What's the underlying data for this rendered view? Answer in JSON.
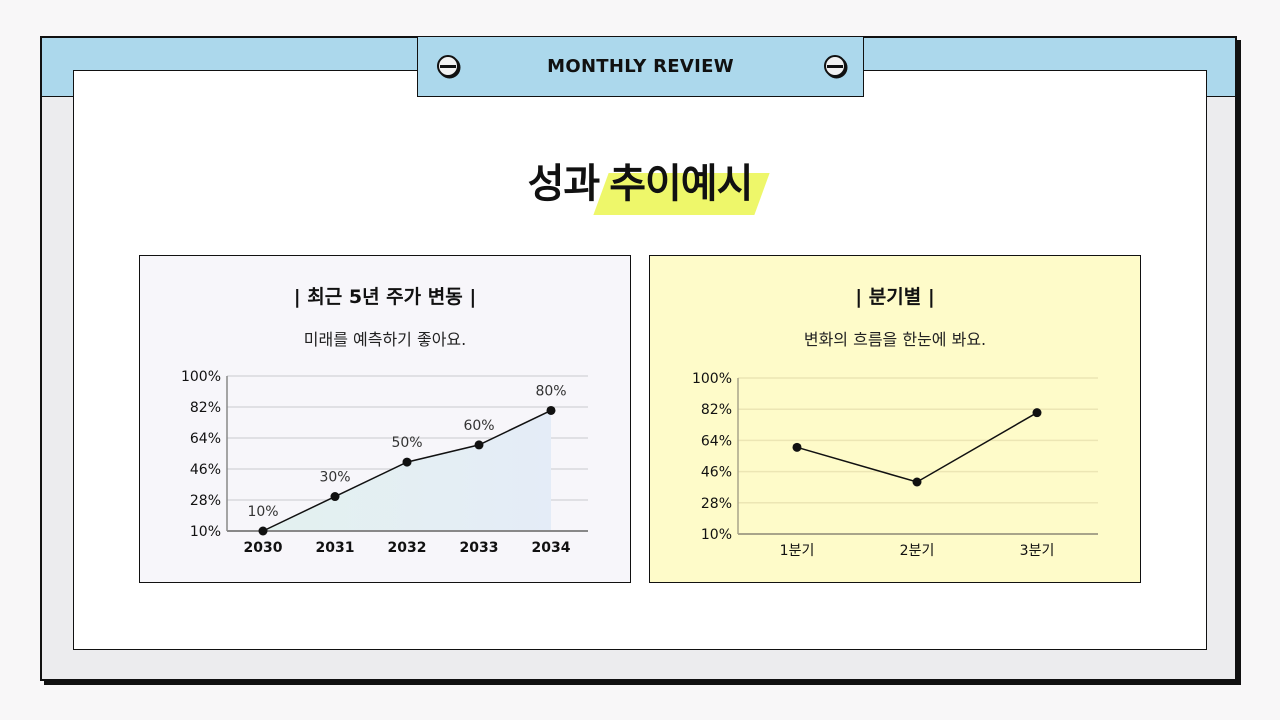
{
  "header": {
    "tab_label": "MONTHLY REVIEW"
  },
  "title": {
    "plain": "성과",
    "highlight": "추이예시",
    "highlight_color": "#eef76a"
  },
  "colors": {
    "page_bg": "#f8f7f8",
    "band_blue": "#acd8ec",
    "frame_gray": "#ececee",
    "left_card_bg": "#f7f6fa",
    "right_card_bg": "#fefbc9"
  },
  "cards": [
    {
      "title": "| 최근 5년 주가 변동 |",
      "subtitle": "미래를 예측하기 좋아요."
    },
    {
      "title": "| 분기별 |",
      "subtitle": "변화의 흐름을 한눈에 봐요."
    }
  ],
  "chart_data": [
    {
      "type": "area",
      "title": "최근 5년 주가 변동",
      "subtitle": "미래를 예측하기 좋아요.",
      "categories": [
        "2030",
        "2031",
        "2032",
        "2033",
        "2034"
      ],
      "values": [
        10,
        30,
        50,
        60,
        80
      ],
      "data_labels": [
        "10%",
        "30%",
        "50%",
        "60%",
        "80%"
      ],
      "yticks": [
        "10%",
        "28%",
        "46%",
        "64%",
        "82%",
        "100%"
      ],
      "ylim": [
        10,
        100
      ],
      "xlabel": "",
      "ylabel": "",
      "grid": true,
      "legend": "none"
    },
    {
      "type": "line",
      "title": "분기별",
      "subtitle": "변화의 흐름을 한눈에 봐요.",
      "categories": [
        "1분기",
        "2분기",
        "3분기"
      ],
      "values": [
        60,
        40,
        80
      ],
      "yticks": [
        "10%",
        "28%",
        "46%",
        "64%",
        "82%",
        "100%"
      ],
      "ylim": [
        10,
        100
      ],
      "xlabel": "",
      "ylabel": "",
      "grid": true,
      "legend": "none"
    }
  ]
}
